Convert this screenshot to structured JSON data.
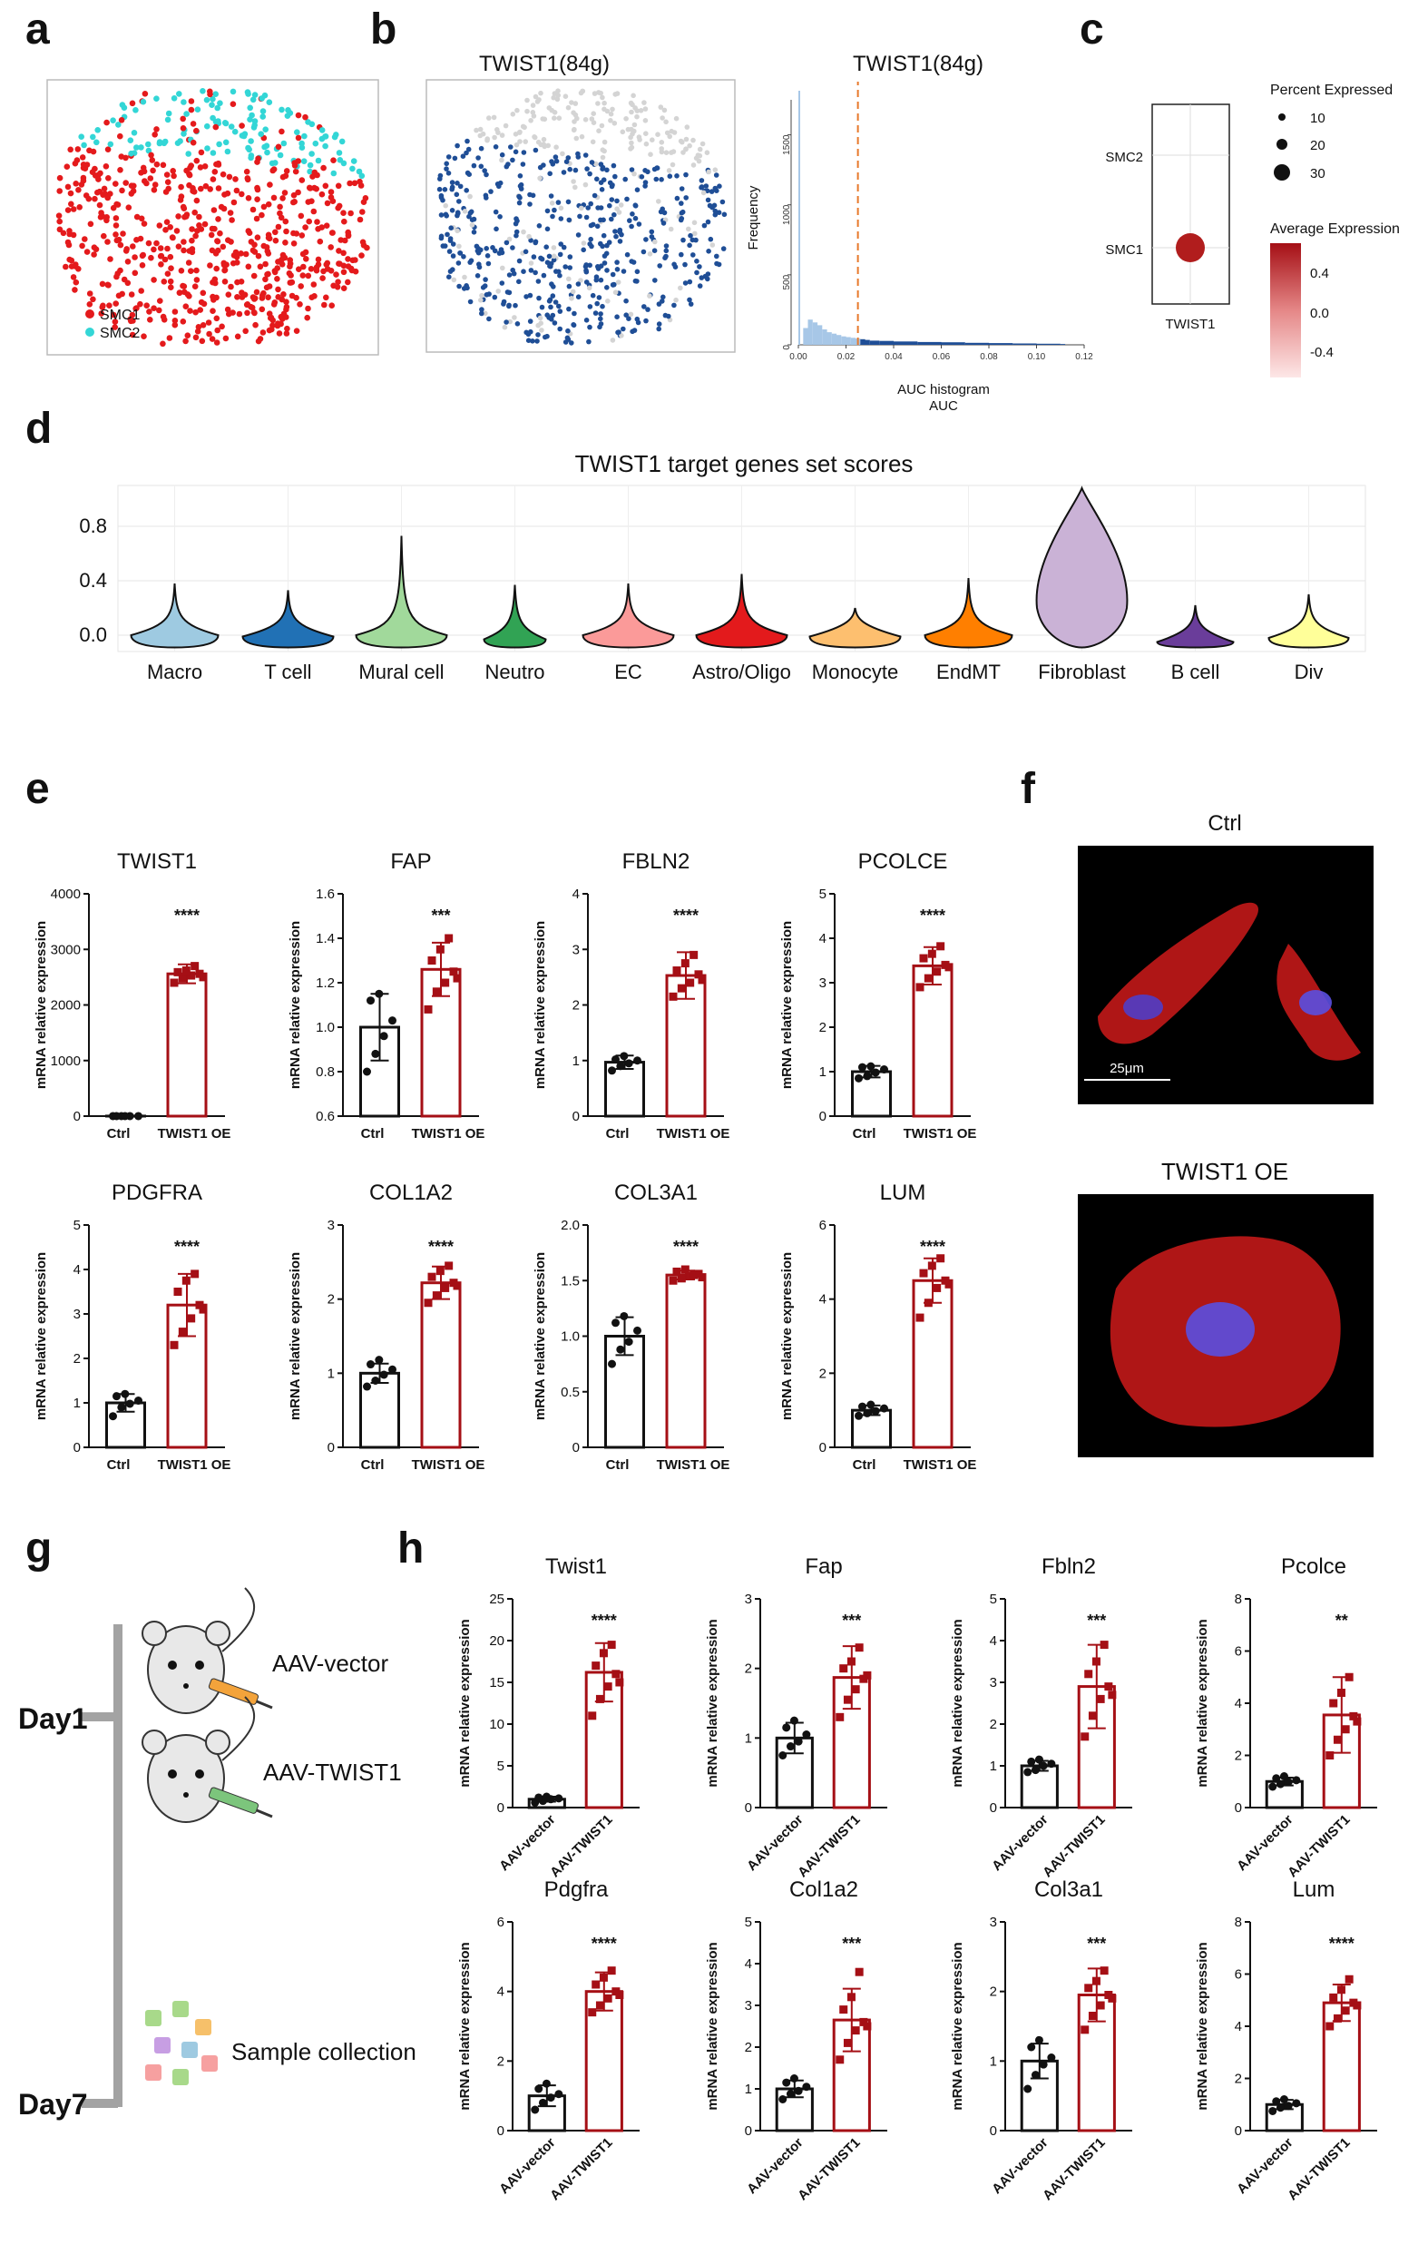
{
  "colors": {
    "ctrl": "#111111",
    "oe": "#a50f15",
    "smc1": "#e41a1c",
    "smc2": "#33d6d6",
    "auc_blue": "#1f4e96",
    "auc_grey": "#d4d4d4",
    "hist_light": "#a7c7e7",
    "threshold": "#e8792b"
  },
  "panel_a": {
    "letter": "a",
    "legend": [
      "SMC1",
      "SMC2"
    ]
  },
  "panel_b": {
    "letter": "b",
    "umap_title": "TWIST1(84g)",
    "hist_title": "TWIST1(84g)",
    "hist_xlabel": "AUC histogram",
    "hist_xlabel2": "AUC",
    "hist_ylabel": "Frequency",
    "hist_yticks": [
      "0",
      "500",
      "1000",
      "1500"
    ],
    "hist_xticks": [
      "0.00",
      "0.02",
      "0.04",
      "0.06",
      "0.08",
      "0.10",
      "0.12"
    ],
    "hist_data": {
      "type": "histogram",
      "threshold": 0.025,
      "bin_width": 0.002,
      "bin_left": [
        0.0,
        0.002,
        0.004,
        0.006,
        0.008,
        0.01,
        0.012,
        0.014,
        0.016,
        0.018,
        0.02,
        0.022,
        0.024,
        0.026,
        0.028,
        0.03,
        0.034,
        0.04,
        0.05,
        0.06,
        0.07,
        0.08,
        0.09,
        0.1,
        0.11
      ],
      "counts": [
        1700,
        120,
        180,
        160,
        140,
        110,
        90,
        80,
        70,
        60,
        55,
        50,
        45,
        40,
        35,
        30,
        28,
        24,
        20,
        18,
        14,
        12,
        10,
        8,
        6
      ]
    }
  },
  "panel_c": {
    "letter": "c",
    "rows": [
      "SMC2",
      "SMC1"
    ],
    "col": "TWIST1",
    "size_legend_title": "Percent Expressed",
    "size_legend": [
      "10",
      "20",
      "30"
    ],
    "color_legend_title": "Average Expression",
    "color_legend_ticks": [
      "0.4",
      "0.0",
      "-0.4"
    ]
  },
  "panel_d": {
    "letter": "d",
    "chart_data": {
      "type": "violin",
      "title": "TWIST1 target genes set scores",
      "yticks": [
        "0.0",
        "0.4",
        "0.8"
      ],
      "ylim": [
        -0.12,
        1.1
      ],
      "categories": [
        "Macro",
        "T cell",
        "Mural cell",
        "Neutro",
        "EC",
        "Astro/Oligo",
        "Monocyte",
        "EndMT",
        "Fibroblast",
        "B cell",
        "Div"
      ],
      "colors": [
        "#9ecae1",
        "#2171b5",
        "#a1d99b",
        "#31a354",
        "#fb9a99",
        "#e31a1c",
        "#fdbf6f",
        "#ff7f00",
        "#cab2d6",
        "#6a3d9a",
        "#ffff99"
      ],
      "max": [
        0.38,
        0.33,
        0.73,
        0.37,
        0.38,
        0.45,
        0.2,
        0.42,
        1.08,
        0.22,
        0.3
      ],
      "median": [
        0.0,
        -0.01,
        0.0,
        -0.03,
        0.0,
        0.0,
        -0.01,
        0.0,
        0.32,
        -0.05,
        -0.02
      ],
      "max_half_width": [
        48,
        50,
        50,
        34,
        50,
        50,
        50,
        48,
        55,
        42,
        44
      ]
    }
  },
  "panel_e": {
    "letter": "e",
    "ylabel": "mRNA relative expression",
    "chart_data": [
      {
        "type": "bar",
        "title": "TWIST1",
        "categories": [
          "Ctrl",
          "TWIST1 OE"
        ],
        "values": [
          1,
          2560
        ],
        "errors": [
          1,
          170
        ],
        "points": [
          [
            1,
            1,
            1,
            1,
            1,
            1
          ],
          [
            2400,
            2480,
            2530,
            2560,
            2590,
            2620,
            2700,
            2500
          ]
        ],
        "ylim": [
          0,
          4000
        ],
        "yticks": [
          "0",
          "1000",
          "2000",
          "3000",
          "4000"
        ],
        "sig": "****"
      },
      {
        "type": "bar",
        "title": "FAP",
        "categories": [
          "Ctrl",
          "TWIST1 OE"
        ],
        "values": [
          1.0,
          1.26
        ],
        "errors": [
          0.15,
          0.12
        ],
        "points": [
          [
            0.8,
            0.88,
            0.96,
            1.03,
            1.12,
            1.15
          ],
          [
            1.08,
            1.16,
            1.2,
            1.25,
            1.3,
            1.35,
            1.4,
            1.22
          ]
        ],
        "ylim": [
          0.6,
          1.6
        ],
        "yticks": [
          "0.6",
          "0.8",
          "1.0",
          "1.2",
          "1.4",
          "1.6"
        ],
        "sig": "***"
      },
      {
        "type": "bar",
        "title": "FBLN2",
        "categories": [
          "Ctrl",
          "TWIST1 OE"
        ],
        "values": [
          0.97,
          2.53
        ],
        "errors": [
          0.12,
          0.42
        ],
        "points": [
          [
            0.82,
            0.9,
            0.95,
            1.0,
            1.02,
            1.08
          ],
          [
            2.15,
            2.3,
            2.4,
            2.55,
            2.62,
            2.75,
            2.9,
            2.45
          ]
        ],
        "ylim": [
          0,
          4
        ],
        "yticks": [
          "0",
          "1",
          "2",
          "3",
          "4"
        ],
        "sig": "****"
      },
      {
        "type": "bar",
        "title": "PCOLCE",
        "categories": [
          "Ctrl",
          "TWIST1 OE"
        ],
        "values": [
          1.0,
          3.38
        ],
        "errors": [
          0.13,
          0.42
        ],
        "points": [
          [
            0.85,
            0.9,
            0.98,
            1.05,
            1.1,
            1.12
          ],
          [
            2.9,
            3.1,
            3.25,
            3.4,
            3.55,
            3.65,
            3.82,
            3.35
          ]
        ],
        "ylim": [
          0,
          5
        ],
        "yticks": [
          "0",
          "1",
          "2",
          "3",
          "4",
          "5"
        ],
        "sig": "****"
      },
      {
        "type": "bar",
        "title": "PDGFRA",
        "categories": [
          "Ctrl",
          "TWIST1 OE"
        ],
        "values": [
          1.0,
          3.2
        ],
        "errors": [
          0.2,
          0.7
        ],
        "points": [
          [
            0.7,
            0.9,
            0.98,
            1.05,
            1.15,
            1.2
          ],
          [
            2.3,
            2.6,
            2.9,
            3.2,
            3.5,
            3.75,
            3.9,
            3.1
          ]
        ],
        "ylim": [
          0,
          5
        ],
        "yticks": [
          "0",
          "1",
          "2",
          "3",
          "4",
          "5"
        ],
        "sig": "****"
      },
      {
        "type": "bar",
        "title": "COL1A2",
        "categories": [
          "Ctrl",
          "TWIST1 OE"
        ],
        "values": [
          1.0,
          2.22
        ],
        "errors": [
          0.13,
          0.22
        ],
        "points": [
          [
            0.82,
            0.9,
            0.98,
            1.05,
            1.12,
            1.18
          ],
          [
            1.95,
            2.05,
            2.15,
            2.22,
            2.3,
            2.38,
            2.45,
            2.18
          ]
        ],
        "ylim": [
          0,
          3
        ],
        "yticks": [
          "0",
          "1",
          "2",
          "3"
        ],
        "sig": "****"
      },
      {
        "type": "bar",
        "title": "COL3A1",
        "categories": [
          "Ctrl",
          "TWIST1 OE"
        ],
        "values": [
          1.0,
          1.55
        ],
        "errors": [
          0.17,
          0.04
        ],
        "points": [
          [
            0.75,
            0.88,
            0.95,
            1.05,
            1.12,
            1.18
          ],
          [
            1.5,
            1.52,
            1.54,
            1.56,
            1.58,
            1.6,
            1.55,
            1.53
          ]
        ],
        "ylim": [
          0,
          2.0
        ],
        "yticks": [
          "0",
          "0.5",
          "1.0",
          "1.5",
          "2.0"
        ],
        "sig": "****"
      },
      {
        "type": "bar",
        "title": "LUM",
        "categories": [
          "Ctrl",
          "TWIST1 OE"
        ],
        "values": [
          1.0,
          4.5
        ],
        "errors": [
          0.13,
          0.6
        ],
        "points": [
          [
            0.85,
            0.92,
            0.98,
            1.05,
            1.1,
            1.15
          ],
          [
            3.5,
            3.9,
            4.3,
            4.5,
            4.7,
            4.9,
            5.1,
            4.4
          ]
        ],
        "ylim": [
          0,
          6
        ],
        "yticks": [
          "0",
          "2",
          "4",
          "6"
        ],
        "sig": "****"
      }
    ]
  },
  "panel_f": {
    "letter": "f",
    "top_label": "Ctrl",
    "bottom_label": "TWIST1 OE",
    "scale_bar": "25μm"
  },
  "panel_g": {
    "letter": "g",
    "day1": "Day1",
    "day7": "Day7",
    "vector": "AAV-vector",
    "twist": "AAV-TWIST1",
    "sample": "Sample collection"
  },
  "panel_h": {
    "letter": "h",
    "ylabel": "mRNA relative expression",
    "chart_data": [
      {
        "type": "bar",
        "title": "Twist1",
        "categories": [
          "AAV-vector",
          "AAV-TWIST1"
        ],
        "values": [
          1.0,
          16.2
        ],
        "errors": [
          0.3,
          3.5
        ],
        "points": [
          [
            0.6,
            0.8,
            1.0,
            1.1,
            1.2,
            1.3
          ],
          [
            11,
            13,
            14.5,
            16,
            17,
            18.5,
            19.5,
            15
          ]
        ],
        "ylim": [
          0,
          25
        ],
        "yticks": [
          "0",
          "5",
          "10",
          "15",
          "20",
          "25"
        ],
        "sig": "****"
      },
      {
        "type": "bar",
        "title": "Fap",
        "categories": [
          "AAV-vector",
          "AAV-TWIST1"
        ],
        "values": [
          1.0,
          1.87
        ],
        "errors": [
          0.22,
          0.45
        ],
        "points": [
          [
            0.75,
            0.88,
            0.95,
            1.05,
            1.15,
            1.25
          ],
          [
            1.3,
            1.55,
            1.7,
            1.85,
            2.0,
            2.1,
            2.3,
            1.9
          ]
        ],
        "ylim": [
          0,
          3
        ],
        "yticks": [
          "0",
          "1",
          "2",
          "3"
        ],
        "sig": "***"
      },
      {
        "type": "bar",
        "title": "Fbln2",
        "categories": [
          "AAV-vector",
          "AAV-TWIST1"
        ],
        "values": [
          1.0,
          2.9
        ],
        "errors": [
          0.12,
          1.0
        ],
        "points": [
          [
            0.85,
            0.9,
            1.0,
            1.05,
            1.1,
            1.15
          ],
          [
            1.7,
            2.2,
            2.6,
            2.9,
            3.2,
            3.5,
            3.9,
            2.7
          ]
        ],
        "ylim": [
          0,
          5
        ],
        "yticks": [
          "0",
          "1",
          "2",
          "3",
          "4",
          "5"
        ],
        "sig": "***"
      },
      {
        "type": "bar",
        "title": "Pcolce",
        "categories": [
          "AAV-vector",
          "AAV-TWIST1"
        ],
        "values": [
          1.0,
          3.55
        ],
        "errors": [
          0.15,
          1.45
        ],
        "points": [
          [
            0.8,
            0.9,
            0.98,
            1.05,
            1.12,
            1.2
          ],
          [
            2.0,
            2.6,
            3.0,
            3.5,
            4.0,
            4.4,
            5.0,
            3.3
          ]
        ],
        "ylim": [
          0,
          8
        ],
        "yticks": [
          "0",
          "2",
          "4",
          "6",
          "8"
        ],
        "sig": "**"
      },
      {
        "type": "bar",
        "title": "Pdgfra",
        "categories": [
          "AAV-vector",
          "AAV-TWIST1"
        ],
        "values": [
          1.0,
          4.0
        ],
        "errors": [
          0.3,
          0.55
        ],
        "points": [
          [
            0.6,
            0.8,
            0.95,
            1.05,
            1.2,
            1.35
          ],
          [
            3.4,
            3.6,
            3.8,
            4.0,
            4.2,
            4.4,
            4.6,
            3.9
          ]
        ],
        "ylim": [
          0,
          6
        ],
        "yticks": [
          "0",
          "2",
          "4",
          "6"
        ],
        "sig": "****"
      },
      {
        "type": "bar",
        "title": "Col1a2",
        "categories": [
          "AAV-vector",
          "AAV-TWIST1"
        ],
        "values": [
          1.0,
          2.65
        ],
        "errors": [
          0.2,
          0.75
        ],
        "points": [
          [
            0.75,
            0.88,
            0.95,
            1.05,
            1.15,
            1.25
          ],
          [
            1.7,
            2.1,
            2.4,
            2.6,
            2.9,
            3.2,
            3.8,
            2.5
          ]
        ],
        "ylim": [
          0,
          5
        ],
        "yticks": [
          "0",
          "1",
          "2",
          "3",
          "4",
          "5"
        ],
        "sig": "***"
      },
      {
        "type": "bar",
        "title": "Col3a1",
        "categories": [
          "AAV-vector",
          "AAV-TWIST1"
        ],
        "values": [
          1.0,
          1.95
        ],
        "errors": [
          0.25,
          0.38
        ],
        "points": [
          [
            0.6,
            0.8,
            0.95,
            1.05,
            1.2,
            1.3
          ],
          [
            1.45,
            1.65,
            1.8,
            1.95,
            2.05,
            2.15,
            2.3,
            1.9
          ]
        ],
        "ylim": [
          0,
          3
        ],
        "yticks": [
          "0",
          "1",
          "2",
          "3"
        ],
        "sig": "***"
      },
      {
        "type": "bar",
        "title": "Lum",
        "categories": [
          "AAV-vector",
          "AAV-TWIST1"
        ],
        "values": [
          1.0,
          4.9
        ],
        "errors": [
          0.18,
          0.7
        ],
        "points": [
          [
            0.75,
            0.88,
            0.95,
            1.05,
            1.12,
            1.2
          ],
          [
            4.0,
            4.3,
            4.6,
            4.9,
            5.1,
            5.4,
            5.8,
            4.8
          ]
        ],
        "ylim": [
          0,
          8
        ],
        "yticks": [
          "0",
          "2",
          "4",
          "6",
          "8"
        ],
        "sig": "****"
      }
    ]
  }
}
